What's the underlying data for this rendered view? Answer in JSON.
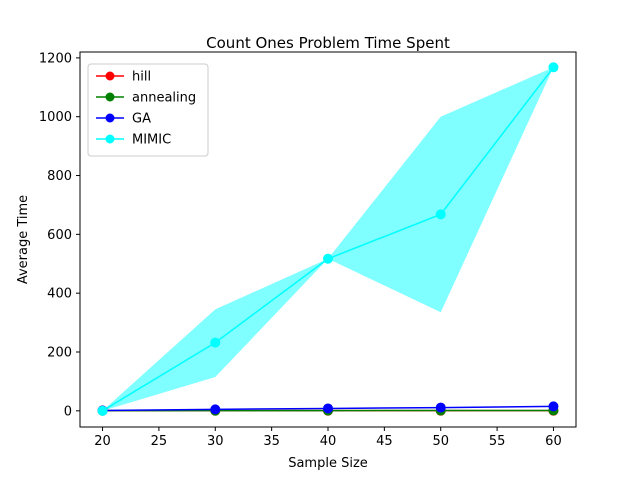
{
  "chart_data": {
    "type": "line",
    "title": "Count Ones Problem Time Spent",
    "xlabel": "Sample Size",
    "ylabel": "Average Time",
    "x": [
      20,
      30,
      40,
      50,
      60
    ],
    "xlim": [
      18,
      62
    ],
    "ylim": [
      -55,
      1220
    ],
    "xticks": [
      20,
      25,
      30,
      35,
      40,
      45,
      50,
      55,
      60
    ],
    "yticks": [
      0,
      200,
      400,
      600,
      800,
      1000,
      1200
    ],
    "grid": false,
    "legend_position": "top-left",
    "series": [
      {
        "name": "hill",
        "color": "#ff0000",
        "values": [
          0.5,
          0.5,
          0.5,
          0.5,
          0.5
        ]
      },
      {
        "name": "annealing",
        "color": "#008000",
        "values": [
          0.5,
          0.5,
          0.8,
          1.0,
          1.2
        ]
      },
      {
        "name": "GA",
        "color": "#0000ff",
        "values": [
          1,
          5,
          8,
          11,
          15
        ]
      },
      {
        "name": "MIMIC",
        "color": "#00ffff",
        "values": [
          0,
          232,
          517,
          668,
          1168
        ],
        "band_lower": [
          0,
          115,
          517,
          335,
          1168
        ],
        "band_upper": [
          0,
          345,
          517,
          1000,
          1168
        ]
      }
    ]
  }
}
